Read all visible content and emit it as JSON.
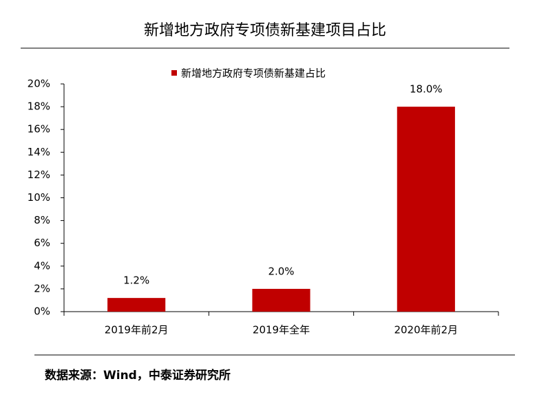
{
  "chart_data": {
    "type": "bar",
    "title": "新增地方政府专项债新基建项目占比",
    "categories": [
      "2019年前2月",
      "2019年全年",
      "2020年前2月"
    ],
    "series": [
      {
        "name": "新增地方政府专项债新基建占比",
        "color": "#c00000",
        "values": [
          1.2,
          2.0,
          18.0
        ],
        "value_labels": [
          "1.2%",
          "2.0%",
          "18.0%"
        ]
      }
    ],
    "ylim": [
      0,
      20
    ],
    "yticks": [
      {
        "value": 0,
        "label": "0%"
      },
      {
        "value": 2,
        "label": "2%"
      },
      {
        "value": 4,
        "label": "4%"
      },
      {
        "value": 6,
        "label": "6%"
      },
      {
        "value": 8,
        "label": "8%"
      },
      {
        "value": 10,
        "label": "10%"
      },
      {
        "value": 12,
        "label": "12%"
      },
      {
        "value": 14,
        "label": "14%"
      },
      {
        "value": 16,
        "label": "16%"
      },
      {
        "value": 18,
        "label": "18%"
      },
      {
        "value": 20,
        "label": "20%"
      }
    ],
    "source": "数据来源：Wind，中泰证券研究所",
    "legend": "top"
  }
}
